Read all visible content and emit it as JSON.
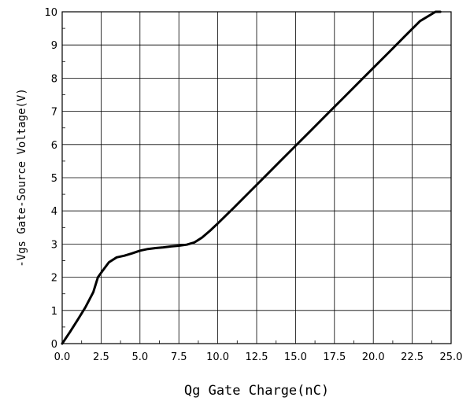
{
  "chart_data": {
    "type": "line",
    "title": "",
    "xlabel": "Qg Gate Charge(nC)",
    "ylabel": "-Vgs Gate-Source Voltage(V)",
    "xlim": [
      0,
      25
    ],
    "ylim": [
      0,
      10
    ],
    "x_ticks": [
      "0.0",
      "2.5",
      "5.0",
      "7.5",
      "10.0",
      "12.5",
      "15.0",
      "17.5",
      "20.0",
      "22.5",
      "25.0"
    ],
    "y_ticks": [
      "0",
      "1",
      "2",
      "3",
      "4",
      "5",
      "6",
      "7",
      "8",
      "9",
      "10"
    ],
    "grid": true,
    "series": [
      {
        "name": "",
        "color": "#000000",
        "x": [
          0.0,
          0.5,
          1.0,
          1.5,
          2.0,
          2.3,
          2.6,
          3.0,
          3.5,
          4.0,
          4.5,
          5.0,
          5.5,
          6.0,
          6.5,
          7.0,
          7.5,
          8.0,
          8.5,
          9.0,
          9.5,
          10.0,
          11.0,
          12.0,
          13.0,
          14.0,
          15.0,
          16.0,
          17.0,
          18.0,
          19.0,
          20.0,
          21.0,
          22.0,
          23.0,
          24.0,
          24.3
        ],
        "y": [
          0.0,
          0.35,
          0.72,
          1.1,
          1.55,
          2.0,
          2.2,
          2.45,
          2.6,
          2.65,
          2.72,
          2.8,
          2.85,
          2.88,
          2.9,
          2.93,
          2.95,
          2.98,
          3.05,
          3.2,
          3.4,
          3.62,
          4.08,
          4.55,
          5.02,
          5.49,
          5.96,
          6.43,
          6.9,
          7.37,
          7.84,
          8.31,
          8.78,
          9.25,
          9.72,
          10.0,
          10.0
        ]
      }
    ]
  }
}
